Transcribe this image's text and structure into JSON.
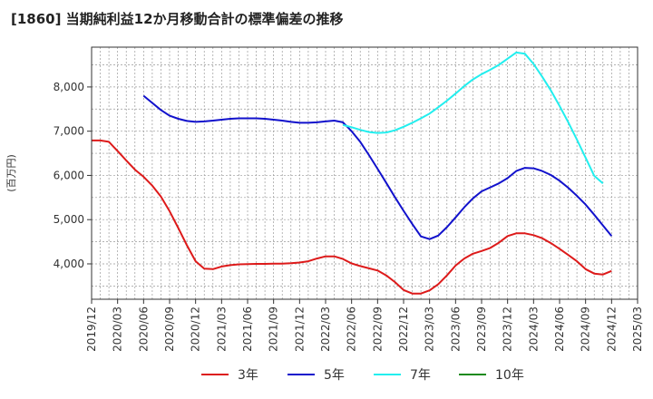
{
  "chart_data": {
    "type": "line",
    "title": "[1860]  当期純利益12か月移動合計の標準偏差の推移",
    "ylabel": "(百万円)",
    "xlabel": "",
    "ylim": [
      3200,
      8900
    ],
    "yticks": [
      4000,
      5000,
      6000,
      7000,
      8000
    ],
    "ytick_labels": [
      "4,000",
      "5,000",
      "6,000",
      "7,000",
      "8,000"
    ],
    "x_ticks": [
      "2019/12",
      "2020/03",
      "2020/06",
      "2020/09",
      "2020/12",
      "2021/03",
      "2021/06",
      "2021/09",
      "2021/12",
      "2022/03",
      "2022/06",
      "2022/09",
      "2022/12",
      "2023/03",
      "2023/06",
      "2023/09",
      "2023/12",
      "2024/03",
      "2024/06",
      "2024/09",
      "2024/12",
      "2025/03"
    ],
    "grid": true,
    "legend_position": "bottom",
    "series": [
      {
        "name": "3年",
        "color": "#dd1a1a",
        "values": [
          {
            "x": 0,
            "y": 6790
          },
          {
            "x": 1,
            "y": 6790
          },
          {
            "x": 2,
            "y": 6760
          },
          {
            "x": 3,
            "y": 6550
          },
          {
            "x": 4,
            "y": 6340
          },
          {
            "x": 5,
            "y": 6130
          },
          {
            "x": 6,
            "y": 5970
          },
          {
            "x": 7,
            "y": 5770
          },
          {
            "x": 8,
            "y": 5520
          },
          {
            "x": 9,
            "y": 5190
          },
          {
            "x": 10,
            "y": 4810
          },
          {
            "x": 11,
            "y": 4420
          },
          {
            "x": 12,
            "y": 4060
          },
          {
            "x": 13,
            "y": 3890
          },
          {
            "x": 14,
            "y": 3880
          },
          {
            "x": 15,
            "y": 3940
          },
          {
            "x": 16,
            "y": 3970
          },
          {
            "x": 17,
            "y": 3990
          },
          {
            "x": 18,
            "y": 3995
          },
          {
            "x": 19,
            "y": 4000
          },
          {
            "x": 20,
            "y": 4000
          },
          {
            "x": 21,
            "y": 4005
          },
          {
            "x": 22,
            "y": 4005
          },
          {
            "x": 23,
            "y": 4015
          },
          {
            "x": 24,
            "y": 4030
          },
          {
            "x": 25,
            "y": 4060
          },
          {
            "x": 26,
            "y": 4120
          },
          {
            "x": 27,
            "y": 4170
          },
          {
            "x": 28,
            "y": 4170
          },
          {
            "x": 29,
            "y": 4110
          },
          {
            "x": 30,
            "y": 4010
          },
          {
            "x": 31,
            "y": 3950
          },
          {
            "x": 32,
            "y": 3900
          },
          {
            "x": 33,
            "y": 3850
          },
          {
            "x": 34,
            "y": 3740
          },
          {
            "x": 35,
            "y": 3590
          },
          {
            "x": 36,
            "y": 3410
          },
          {
            "x": 37,
            "y": 3330
          },
          {
            "x": 38,
            "y": 3330
          },
          {
            "x": 39,
            "y": 3400
          },
          {
            "x": 40,
            "y": 3540
          },
          {
            "x": 41,
            "y": 3740
          },
          {
            "x": 42,
            "y": 3960
          },
          {
            "x": 43,
            "y": 4120
          },
          {
            "x": 44,
            "y": 4230
          },
          {
            "x": 45,
            "y": 4290
          },
          {
            "x": 46,
            "y": 4360
          },
          {
            "x": 47,
            "y": 4480
          },
          {
            "x": 48,
            "y": 4630
          },
          {
            "x": 49,
            "y": 4690
          },
          {
            "x": 50,
            "y": 4690
          },
          {
            "x": 51,
            "y": 4650
          },
          {
            "x": 52,
            "y": 4580
          },
          {
            "x": 53,
            "y": 4470
          },
          {
            "x": 54,
            "y": 4340
          },
          {
            "x": 55,
            "y": 4200
          },
          {
            "x": 56,
            "y": 4060
          },
          {
            "x": 57,
            "y": 3880
          },
          {
            "x": 58,
            "y": 3780
          },
          {
            "x": 59,
            "y": 3760
          },
          {
            "x": 60,
            "y": 3840
          }
        ]
      },
      {
        "name": "5年",
        "color": "#1111cc",
        "values": [
          {
            "x": 6,
            "y": 7800
          },
          {
            "x": 7,
            "y": 7640
          },
          {
            "x": 8,
            "y": 7480
          },
          {
            "x": 9,
            "y": 7350
          },
          {
            "x": 10,
            "y": 7280
          },
          {
            "x": 11,
            "y": 7230
          },
          {
            "x": 12,
            "y": 7210
          },
          {
            "x": 13,
            "y": 7220
          },
          {
            "x": 14,
            "y": 7240
          },
          {
            "x": 15,
            "y": 7260
          },
          {
            "x": 16,
            "y": 7280
          },
          {
            "x": 17,
            "y": 7290
          },
          {
            "x": 18,
            "y": 7290
          },
          {
            "x": 19,
            "y": 7290
          },
          {
            "x": 20,
            "y": 7280
          },
          {
            "x": 21,
            "y": 7260
          },
          {
            "x": 22,
            "y": 7240
          },
          {
            "x": 23,
            "y": 7210
          },
          {
            "x": 24,
            "y": 7190
          },
          {
            "x": 25,
            "y": 7190
          },
          {
            "x": 26,
            "y": 7200
          },
          {
            "x": 27,
            "y": 7220
          },
          {
            "x": 28,
            "y": 7240
          },
          {
            "x": 29,
            "y": 7200
          },
          {
            "x": 30,
            "y": 7000
          },
          {
            "x": 31,
            "y": 6760
          },
          {
            "x": 32,
            "y": 6460
          },
          {
            "x": 33,
            "y": 6150
          },
          {
            "x": 34,
            "y": 5830
          },
          {
            "x": 35,
            "y": 5510
          },
          {
            "x": 36,
            "y": 5200
          },
          {
            "x": 37,
            "y": 4900
          },
          {
            "x": 38,
            "y": 4620
          },
          {
            "x": 39,
            "y": 4560
          },
          {
            "x": 40,
            "y": 4640
          },
          {
            "x": 41,
            "y": 4830
          },
          {
            "x": 42,
            "y": 5050
          },
          {
            "x": 43,
            "y": 5280
          },
          {
            "x": 44,
            "y": 5480
          },
          {
            "x": 45,
            "y": 5640
          },
          {
            "x": 46,
            "y": 5730
          },
          {
            "x": 47,
            "y": 5820
          },
          {
            "x": 48,
            "y": 5940
          },
          {
            "x": 49,
            "y": 6100
          },
          {
            "x": 50,
            "y": 6170
          },
          {
            "x": 51,
            "y": 6160
          },
          {
            "x": 52,
            "y": 6100
          },
          {
            "x": 53,
            "y": 6010
          },
          {
            "x": 54,
            "y": 5880
          },
          {
            "x": 55,
            "y": 5720
          },
          {
            "x": 56,
            "y": 5540
          },
          {
            "x": 57,
            "y": 5340
          },
          {
            "x": 58,
            "y": 5110
          },
          {
            "x": 59,
            "y": 4870
          },
          {
            "x": 60,
            "y": 4630
          }
        ]
      },
      {
        "name": "7年",
        "color": "#22eeee",
        "values": [
          {
            "x": 29,
            "y": 7140
          },
          {
            "x": 30,
            "y": 7090
          },
          {
            "x": 31,
            "y": 7030
          },
          {
            "x": 32,
            "y": 6980
          },
          {
            "x": 33,
            "y": 6960
          },
          {
            "x": 34,
            "y": 6970
          },
          {
            "x": 35,
            "y": 7020
          },
          {
            "x": 36,
            "y": 7100
          },
          {
            "x": 37,
            "y": 7190
          },
          {
            "x": 38,
            "y": 7290
          },
          {
            "x": 39,
            "y": 7400
          },
          {
            "x": 40,
            "y": 7540
          },
          {
            "x": 41,
            "y": 7690
          },
          {
            "x": 42,
            "y": 7850
          },
          {
            "x": 43,
            "y": 8020
          },
          {
            "x": 44,
            "y": 8170
          },
          {
            "x": 45,
            "y": 8290
          },
          {
            "x": 46,
            "y": 8390
          },
          {
            "x": 47,
            "y": 8500
          },
          {
            "x": 48,
            "y": 8640
          },
          {
            "x": 49,
            "y": 8780
          },
          {
            "x": 50,
            "y": 8750
          },
          {
            "x": 51,
            "y": 8520
          },
          {
            "x": 52,
            "y": 8230
          },
          {
            "x": 53,
            "y": 7920
          },
          {
            "x": 54,
            "y": 7570
          },
          {
            "x": 55,
            "y": 7200
          },
          {
            "x": 56,
            "y": 6810
          },
          {
            "x": 57,
            "y": 6400
          },
          {
            "x": 58,
            "y": 5990
          },
          {
            "x": 59,
            "y": 5820
          }
        ]
      },
      {
        "name": "10年",
        "color": "#1a8a1a",
        "values": []
      }
    ]
  }
}
